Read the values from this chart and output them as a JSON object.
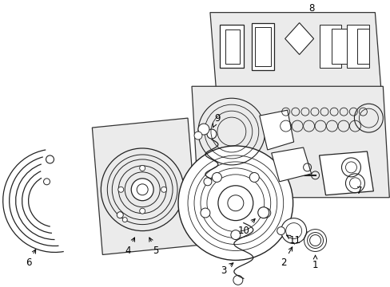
{
  "background_color": "#ffffff",
  "fig_width": 4.89,
  "fig_height": 3.6,
  "dpi": 100,
  "line_color": "#222222",
  "box_fill": "#ebebeb",
  "box_edge": "#333333",
  "label_fontsize": 8.5
}
